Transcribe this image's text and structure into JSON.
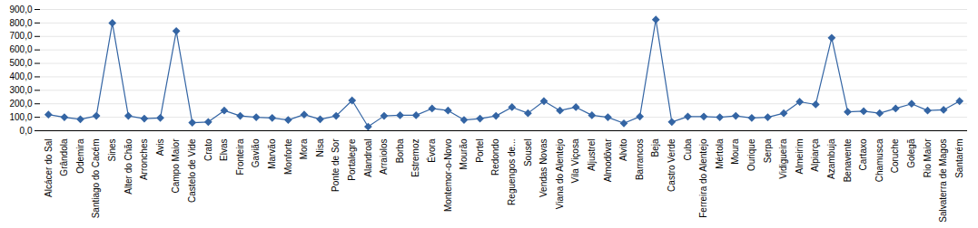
{
  "chart_data": {
    "type": "line",
    "categories": [
      "Alcácer do Sal",
      "Grândola",
      "Odemira",
      "Santiago do Cacém",
      "Sines",
      "Alter do Chão",
      "Arronches",
      "Avis",
      "Campo Maior",
      "Castelo de Vide",
      "Crato",
      "Elvas",
      "Fronteira",
      "Gavião",
      "Marvão",
      "Monforte",
      "Mora",
      "Nisa",
      "Ponte de Sor",
      "Portalegre",
      "Alandroal",
      "Arraiolos",
      "Borba",
      "Estremoz",
      "Évora",
      "Montemor-o-Novo",
      "Mourão",
      "Portel",
      "Redondo",
      "Reguengos de...",
      "Sousel",
      "Vendas Novas",
      "Viana do Alentejo",
      "Vila Viçosa",
      "Aljustrel",
      "Almodôvar",
      "Alvito",
      "Barrancos",
      "Beja",
      "Castro Verde",
      "Cuba",
      "Ferreira do Alentejo",
      "Mértola",
      "Moura",
      "Ourique",
      "Serpa",
      "Vidigueira",
      "Almeirim",
      "Alpiarça",
      "Azambuja",
      "Benavente",
      "Cartaxo",
      "Chamusca",
      "Coruche",
      "Golegã",
      "Rio Maior",
      "Salvaterra de Magos",
      "Santarém"
    ],
    "values": [
      120,
      100,
      85,
      110,
      800,
      110,
      90,
      95,
      740,
      60,
      65,
      150,
      110,
      100,
      95,
      80,
      120,
      85,
      110,
      225,
      30,
      110,
      115,
      115,
      165,
      150,
      80,
      90,
      110,
      175,
      130,
      220,
      150,
      175,
      115,
      100,
      55,
      105,
      825,
      65,
      105,
      105,
      100,
      110,
      95,
      100,
      130,
      215,
      195,
      690,
      140,
      145,
      130,
      165,
      200,
      150,
      155,
      220
    ],
    "color": "#3465a4",
    "marker": "diamond",
    "ylim": [
      0,
      900
    ],
    "yticks": [
      {
        "value": 0,
        "label": "0,0"
      },
      {
        "value": 100,
        "label": "100,0"
      },
      {
        "value": 200,
        "label": "200,0"
      },
      {
        "value": 300,
        "label": "300,0"
      },
      {
        "value": 400,
        "label": "400,0"
      },
      {
        "value": 500,
        "label": "500,0"
      },
      {
        "value": 600,
        "label": "600,0"
      },
      {
        "value": 700,
        "label": "700,0"
      },
      {
        "value": 800,
        "label": "800,0"
      },
      {
        "value": 900,
        "label": "900,0"
      }
    ],
    "grid": true
  }
}
